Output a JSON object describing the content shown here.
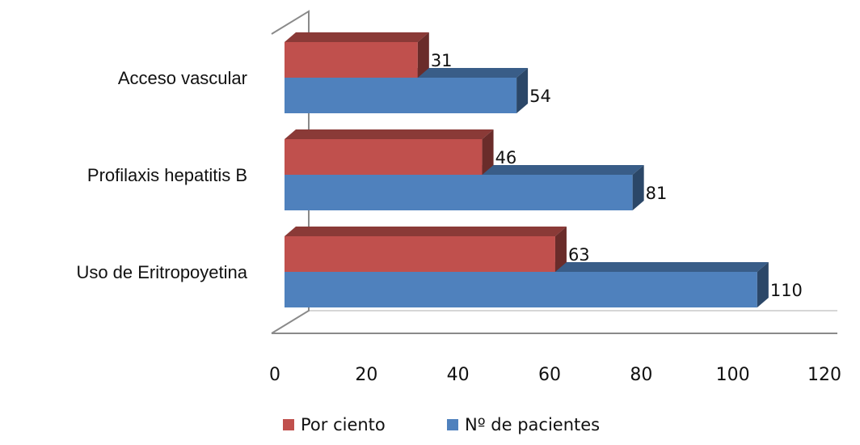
{
  "chart_data": {
    "type": "bar",
    "orientation": "horizontal",
    "style": "3d-clustered",
    "categories": [
      "Acceso vascular",
      "Profilaxis hepatitis B",
      "Uso de Eritropoyetina"
    ],
    "series": [
      {
        "name": "Por ciento",
        "values": [
          31,
          46,
          63
        ],
        "color": "#c0504d"
      },
      {
        "name": "Nº de pacientes",
        "values": [
          54,
          81,
          110
        ],
        "color": "#4f81bd"
      }
    ],
    "xlim": [
      0,
      120
    ],
    "xticks": [
      "0",
      "20",
      "40",
      "60",
      "80",
      "100",
      "120"
    ],
    "data_labels": true,
    "legend_position": "bottom",
    "grid": false
  }
}
